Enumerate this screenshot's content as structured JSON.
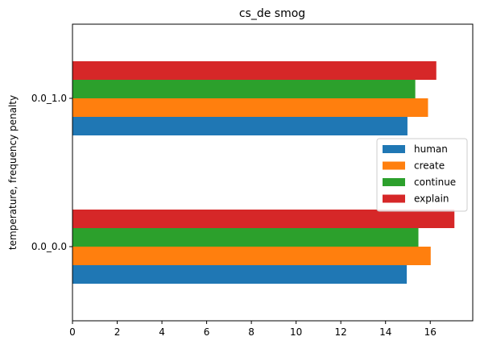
{
  "chart_data": {
    "type": "bar",
    "orientation": "horizontal",
    "title": "cs_de smog",
    "xlabel": "",
    "ylabel": "temperature, frequency penalty",
    "categories": [
      "0.0_0.0",
      "0.0_1.0"
    ],
    "xlim": [
      0,
      17.9
    ],
    "xticks": [
      0,
      2,
      4,
      6,
      8,
      10,
      12,
      14,
      16
    ],
    "series": [
      {
        "name": "human",
        "color": "#1f77b4",
        "values": [
          14.95,
          14.98
        ]
      },
      {
        "name": "create",
        "color": "#ff7f0e",
        "values": [
          16.02,
          15.9
        ]
      },
      {
        "name": "continue",
        "color": "#2ca02c",
        "values": [
          15.47,
          15.33
        ]
      },
      {
        "name": "explain",
        "color": "#d62728",
        "values": [
          17.08,
          16.27
        ]
      }
    ],
    "legend": {
      "placement": "center-right"
    },
    "grid": false
  }
}
